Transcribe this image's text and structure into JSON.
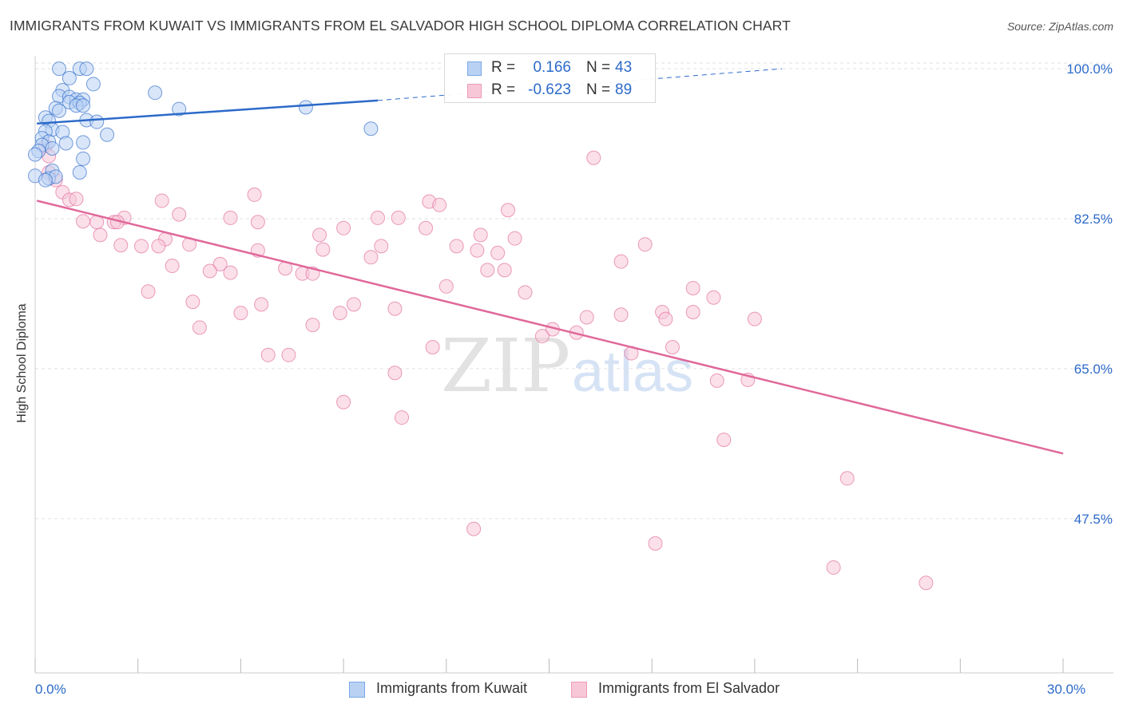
{
  "title": "IMMIGRANTS FROM KUWAIT VS IMMIGRANTS FROM EL SALVADOR HIGH SCHOOL DIPLOMA CORRELATION CHART",
  "source": "Source: ZipAtlas.com",
  "watermark": {
    "part1": "ZIP",
    "part2": "atlas"
  },
  "colors": {
    "blue": "#2c6ac9",
    "blue_fill": "#b9d2f4",
    "pink": "#e0689a",
    "pink_fill": "#f8c7d7",
    "grid": "#e2e2e2"
  },
  "legend_top": {
    "rows": [
      {
        "r_label": "R =",
        "r_value": "0.166",
        "n_label": "N =",
        "n_value": "43"
      },
      {
        "r_label": "R =",
        "r_value": "-0.623",
        "n_label": "N =",
        "n_value": "89"
      }
    ]
  },
  "legend_bottom": {
    "series1": "Immigrants from Kuwait",
    "series2": "Immigrants from El Salvador"
  },
  "chart_data": {
    "type": "scatter",
    "title": "IMMIGRANTS FROM KUWAIT VS IMMIGRANTS FROM EL SALVADOR HIGH SCHOOL DIPLOMA CORRELATION CHART",
    "xlabel": "",
    "ylabel": "High School Diploma",
    "xlim": [
      0,
      30
    ],
    "ylim": [
      29.5,
      101.5
    ],
    "x_tick_labels": [
      {
        "value": 0,
        "label": "0.0%"
      },
      {
        "value": 30,
        "label": "30.0%"
      }
    ],
    "y_tick_labels": [
      {
        "value": 100,
        "label": "100.0%"
      },
      {
        "value": 82.5,
        "label": "82.5%"
      },
      {
        "value": 65,
        "label": "65.0%"
      },
      {
        "value": 47.5,
        "label": "47.5%"
      }
    ],
    "series": [
      {
        "name": "Immigrants from Kuwait",
        "color": "#2c6ac9",
        "fill": "#b9d2f4",
        "trend": {
          "x0": 0.05,
          "y0": 93.6,
          "x1": 10.0,
          "y1": 96.3,
          "dash_x1": 21.8,
          "dash_y1": 100.0
        },
        "points": [
          [
            0.7,
            100.0
          ],
          [
            1.3,
            100.0
          ],
          [
            1.5,
            100.0
          ],
          [
            1.0,
            98.9
          ],
          [
            1.7,
            98.2
          ],
          [
            0.8,
            97.5
          ],
          [
            3.5,
            97.2
          ],
          [
            0.7,
            96.8
          ],
          [
            1.0,
            96.7
          ],
          [
            1.2,
            96.4
          ],
          [
            1.4,
            96.4
          ],
          [
            1.0,
            96.1
          ],
          [
            1.3,
            96.0
          ],
          [
            1.2,
            95.7
          ],
          [
            1.4,
            95.7
          ],
          [
            0.6,
            95.4
          ],
          [
            0.7,
            95.1
          ],
          [
            4.2,
            95.3
          ],
          [
            7.9,
            95.5
          ],
          [
            0.3,
            94.3
          ],
          [
            0.4,
            93.9
          ],
          [
            1.5,
            94.0
          ],
          [
            1.8,
            93.8
          ],
          [
            0.5,
            92.9
          ],
          [
            0.3,
            92.7
          ],
          [
            0.8,
            92.6
          ],
          [
            2.1,
            92.3
          ],
          [
            9.8,
            93.0
          ],
          [
            0.2,
            91.9
          ],
          [
            0.4,
            91.5
          ],
          [
            0.9,
            91.3
          ],
          [
            1.4,
            91.4
          ],
          [
            0.2,
            91.1
          ],
          [
            0.5,
            90.7
          ],
          [
            0.1,
            90.4
          ],
          [
            0.0,
            90.0
          ],
          [
            1.4,
            89.5
          ],
          [
            0.5,
            88.1
          ],
          [
            1.3,
            87.9
          ],
          [
            0.0,
            87.5
          ],
          [
            0.4,
            87.2
          ],
          [
            0.6,
            87.4
          ],
          [
            0.3,
            87.0
          ]
        ]
      },
      {
        "name": "Immigrants from El Salvador",
        "color": "#e0689a",
        "fill": "#f8c7d7",
        "trend": {
          "x0": 0.05,
          "y0": 84.6,
          "x1": 30.0,
          "y1": 55.1
        },
        "points": [
          [
            0.3,
            91.0
          ],
          [
            0.4,
            89.8
          ],
          [
            0.4,
            87.9
          ],
          [
            0.6,
            87.0
          ],
          [
            0.8,
            85.6
          ],
          [
            1.0,
            84.7
          ],
          [
            1.2,
            84.8
          ],
          [
            3.7,
            84.6
          ],
          [
            6.4,
            85.3
          ],
          [
            11.5,
            84.5
          ],
          [
            11.8,
            84.1
          ],
          [
            4.2,
            83.0
          ],
          [
            5.7,
            82.6
          ],
          [
            6.5,
            82.1
          ],
          [
            10.0,
            82.6
          ],
          [
            10.6,
            82.6
          ],
          [
            2.6,
            82.6
          ],
          [
            1.4,
            82.2
          ],
          [
            1.8,
            82.1
          ],
          [
            2.3,
            82.1
          ],
          [
            2.4,
            82.1
          ],
          [
            13.8,
            83.5
          ],
          [
            9.0,
            81.4
          ],
          [
            11.4,
            81.4
          ],
          [
            13.0,
            80.6
          ],
          [
            14.0,
            80.2
          ],
          [
            8.3,
            80.6
          ],
          [
            1.9,
            80.6
          ],
          [
            3.8,
            80.1
          ],
          [
            2.5,
            79.4
          ],
          [
            3.1,
            79.3
          ],
          [
            4.5,
            79.5
          ],
          [
            3.6,
            79.3
          ],
          [
            10.1,
            79.3
          ],
          [
            8.4,
            78.9
          ],
          [
            12.3,
            79.3
          ],
          [
            6.5,
            78.8
          ],
          [
            12.9,
            78.8
          ],
          [
            13.5,
            78.5
          ],
          [
            9.8,
            78.0
          ],
          [
            17.1,
            77.5
          ],
          [
            17.8,
            79.5
          ],
          [
            4.0,
            77.0
          ],
          [
            5.4,
            77.2
          ],
          [
            7.3,
            76.7
          ],
          [
            7.8,
            76.1
          ],
          [
            8.1,
            76.1
          ],
          [
            5.1,
            76.4
          ],
          [
            5.7,
            76.2
          ],
          [
            13.2,
            76.5
          ],
          [
            13.7,
            76.5
          ],
          [
            12.0,
            74.6
          ],
          [
            14.3,
            73.9
          ],
          [
            3.3,
            74.0
          ],
          [
            19.2,
            74.4
          ],
          [
            19.8,
            73.3
          ],
          [
            4.6,
            72.8
          ],
          [
            6.6,
            72.5
          ],
          [
            9.3,
            72.5
          ],
          [
            10.5,
            72.0
          ],
          [
            17.1,
            71.3
          ],
          [
            18.3,
            71.6
          ],
          [
            19.2,
            71.6
          ],
          [
            8.9,
            71.5
          ],
          [
            6.0,
            71.5
          ],
          [
            16.1,
            71.0
          ],
          [
            18.4,
            70.8
          ],
          [
            21.0,
            70.8
          ],
          [
            4.8,
            69.8
          ],
          [
            8.1,
            70.1
          ],
          [
            15.1,
            69.6
          ],
          [
            15.8,
            69.2
          ],
          [
            14.8,
            68.8
          ],
          [
            11.6,
            67.5
          ],
          [
            18.6,
            67.5
          ],
          [
            17.4,
            66.8
          ],
          [
            6.8,
            66.6
          ],
          [
            7.4,
            66.6
          ],
          [
            10.5,
            64.5
          ],
          [
            19.9,
            63.6
          ],
          [
            20.8,
            63.7
          ],
          [
            9.0,
            61.1
          ],
          [
            10.7,
            59.3
          ],
          [
            20.1,
            56.7
          ],
          [
            23.7,
            52.2
          ],
          [
            12.8,
            46.3
          ],
          [
            18.1,
            44.6
          ],
          [
            23.3,
            41.8
          ],
          [
            26.0,
            40.0
          ],
          [
            16.3,
            89.6
          ]
        ]
      }
    ]
  }
}
